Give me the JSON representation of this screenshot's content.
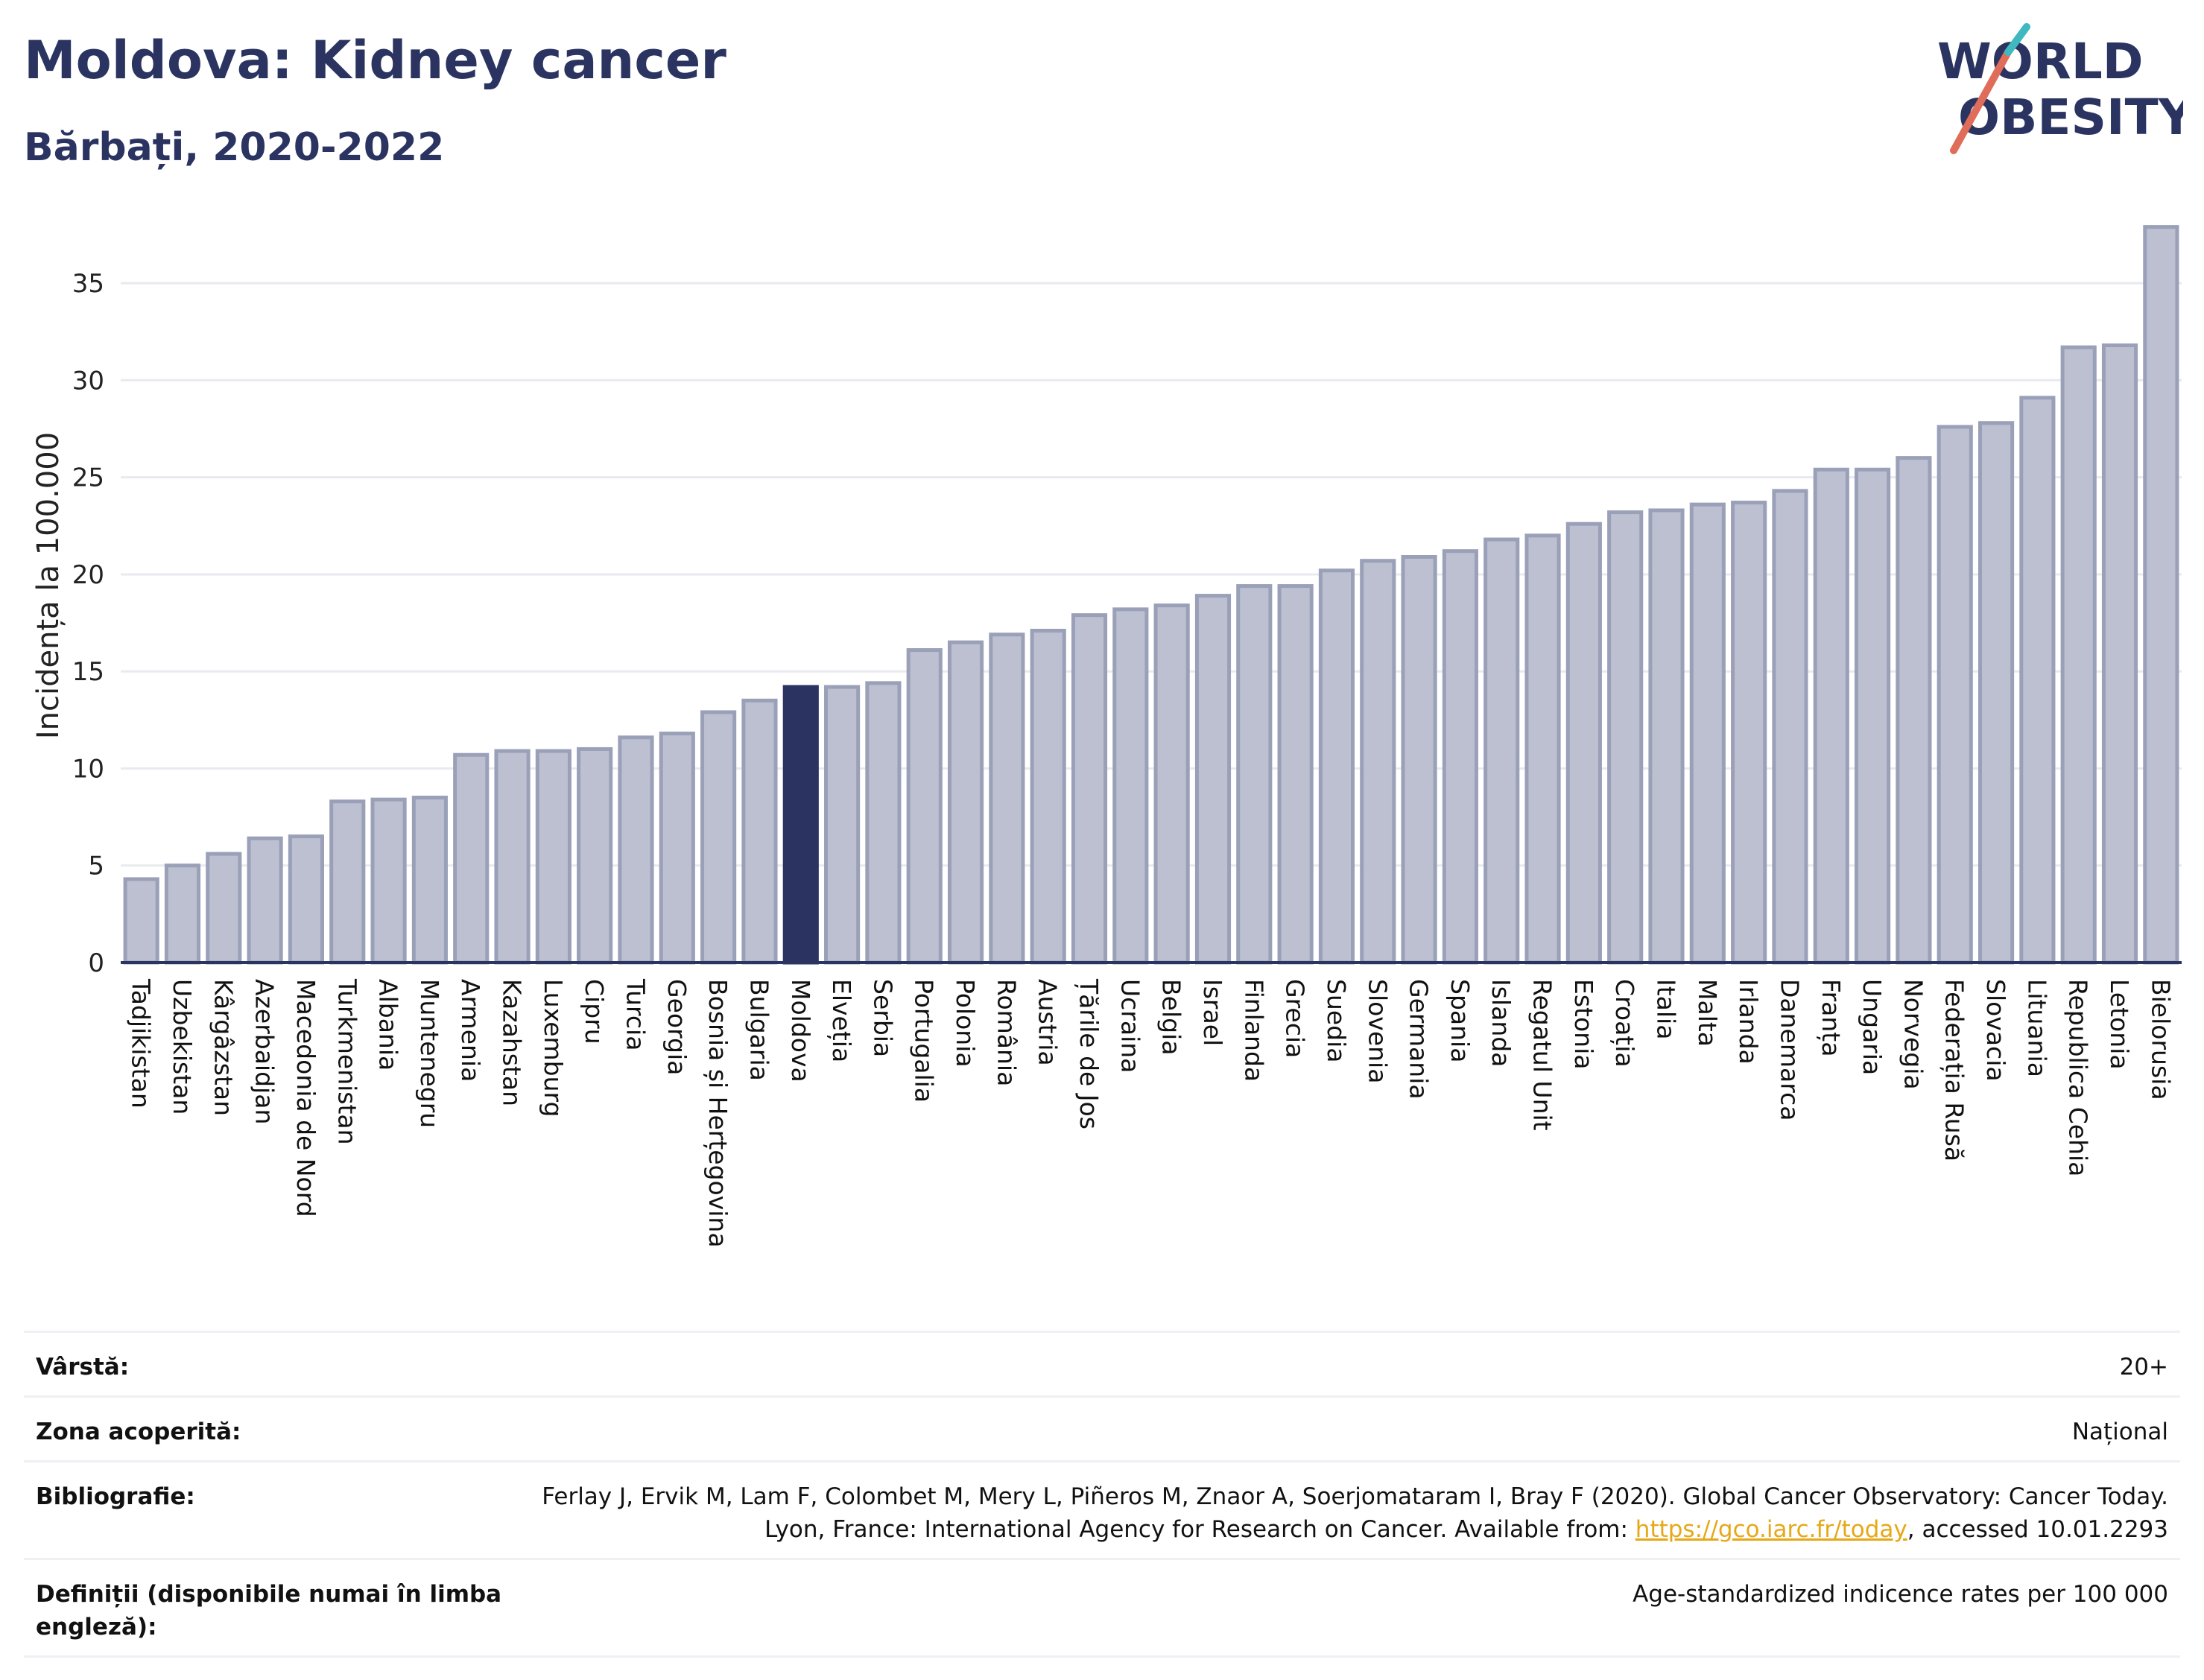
{
  "header": {
    "title": "Moldova: Kidney cancer",
    "subtitle": "Bărbați, 2020-2022",
    "logo_line1": "WORLD",
    "logo_line2": "OBESITY"
  },
  "colors": {
    "bar": "#bcc0d1",
    "bar_stroke": "#9aa0b8",
    "highlight": "#2b3461",
    "logo_slash": "#e06c5a",
    "logo_accent": "#3fb8c0"
  },
  "chart_data": {
    "type": "bar",
    "title": "Moldova: Kidney cancer",
    "subtitle": "Bărbați, 2020-2022",
    "ylabel": "Incidența la 100.000",
    "xlabel": "",
    "ylim": [
      0,
      38
    ],
    "yticks": [
      0,
      5,
      10,
      15,
      20,
      25,
      30,
      35
    ],
    "grid": true,
    "highlight": "Moldova",
    "categories": [
      "Tadjikistan",
      "Uzbekistan",
      "Kârgâzstan",
      "Azerbaidjan",
      "Macedonia de Nord",
      "Turkmenistan",
      "Albania",
      "Muntenegru",
      "Armenia",
      "Kazahstan",
      "Luxemburg",
      "Cipru",
      "Turcia",
      "Georgia",
      "Bosnia și Herțegovina",
      "Bulgaria",
      "Moldova",
      "Elveția",
      "Serbia",
      "Portugalia",
      "Polonia",
      "România",
      "Austria",
      "Țările de Jos",
      "Ucraina",
      "Belgia",
      "Israel",
      "Finlanda",
      "Grecia",
      "Suedia",
      "Slovenia",
      "Germania",
      "Spania",
      "Islanda",
      "Regatul Unit",
      "Estonia",
      "Croația",
      "Italia",
      "Malta",
      "Irlanda",
      "Danemarca",
      "Franța",
      "Ungaria",
      "Norvegia",
      "Federația Rusă",
      "Slovacia",
      "Lituania",
      "Republica Cehia",
      "Letonia",
      "Bielorusia"
    ],
    "values": [
      4.3,
      5.0,
      5.6,
      6.4,
      6.5,
      8.3,
      8.4,
      8.5,
      10.7,
      10.9,
      10.9,
      11.0,
      11.6,
      11.8,
      12.9,
      13.5,
      14.2,
      14.2,
      14.4,
      16.1,
      16.5,
      16.9,
      17.1,
      17.9,
      18.2,
      18.4,
      18.9,
      19.4,
      19.4,
      20.2,
      20.7,
      20.9,
      21.2,
      21.8,
      22.0,
      22.6,
      23.2,
      23.3,
      23.6,
      23.7,
      24.3,
      25.4,
      25.4,
      26.0,
      27.6,
      27.8,
      29.1,
      31.7,
      31.8,
      37.9
    ]
  },
  "meta": {
    "age_label": "Vârstă:",
    "age_value": "20+",
    "coverage_label": "Zona acoperită:",
    "coverage_value": "Național",
    "bib_label": "Bibliografie:",
    "bib_text_1": "Ferlay J, Ervik M, Lam F, Colombet M, Mery L, Piñeros M, Znaor A, Soerjomataram I, Bray F (2020). Global Cancer Observatory: Cancer Today. Lyon, France: International Agency for Research on Cancer. Available from: ",
    "bib_link": "https://gco.iarc.fr/today",
    "bib_text_2": ", accessed 10.01.2293",
    "def_label": "Definiții (disponibile numai în limba engleză):",
    "def_value": "Age-standardized indicence rates per 100 000"
  }
}
